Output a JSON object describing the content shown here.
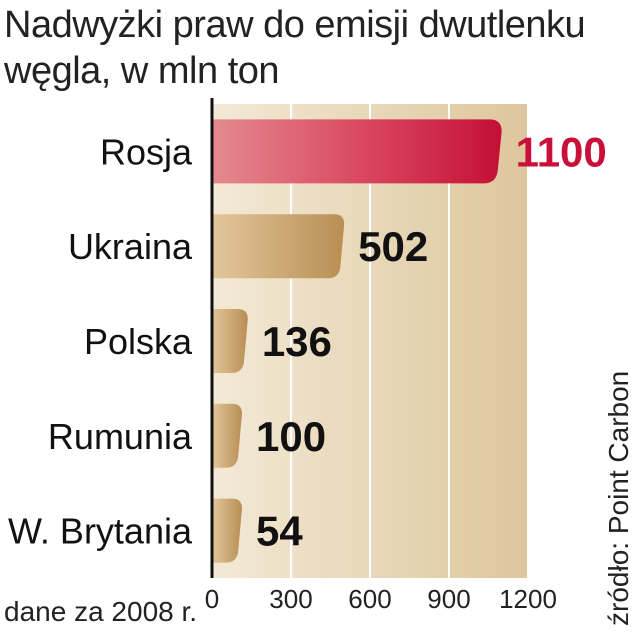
{
  "chart_data": {
    "type": "bar",
    "orientation": "horizontal",
    "title": "Nadwyżki praw do emisji dwutlenku węgla, w mln ton",
    "categories": [
      "Rosja",
      "Ukraina",
      "Polska",
      "Rumunia",
      "W. Brytania"
    ],
    "values": [
      1100,
      502,
      136,
      100,
      54
    ],
    "value_labels": [
      "1100",
      "502",
      "136",
      "100",
      "54"
    ],
    "xlim": [
      0,
      1200
    ],
    "xticks": [
      0,
      300,
      600,
      900,
      1200
    ],
    "xtick_labels": [
      "0",
      "300",
      "600",
      "900",
      "1200"
    ],
    "grid": true,
    "highlight_index": 0,
    "colors": {
      "highlight": "#d42a4a",
      "highlight_label": "#c8103a",
      "bar": "#c9a36a",
      "plot_bg": "#eadcc3",
      "grid": "#ffffff",
      "axis": "#111111"
    }
  },
  "footnote": "dane za 2008 r.",
  "source": "źródło: Point Carbon"
}
